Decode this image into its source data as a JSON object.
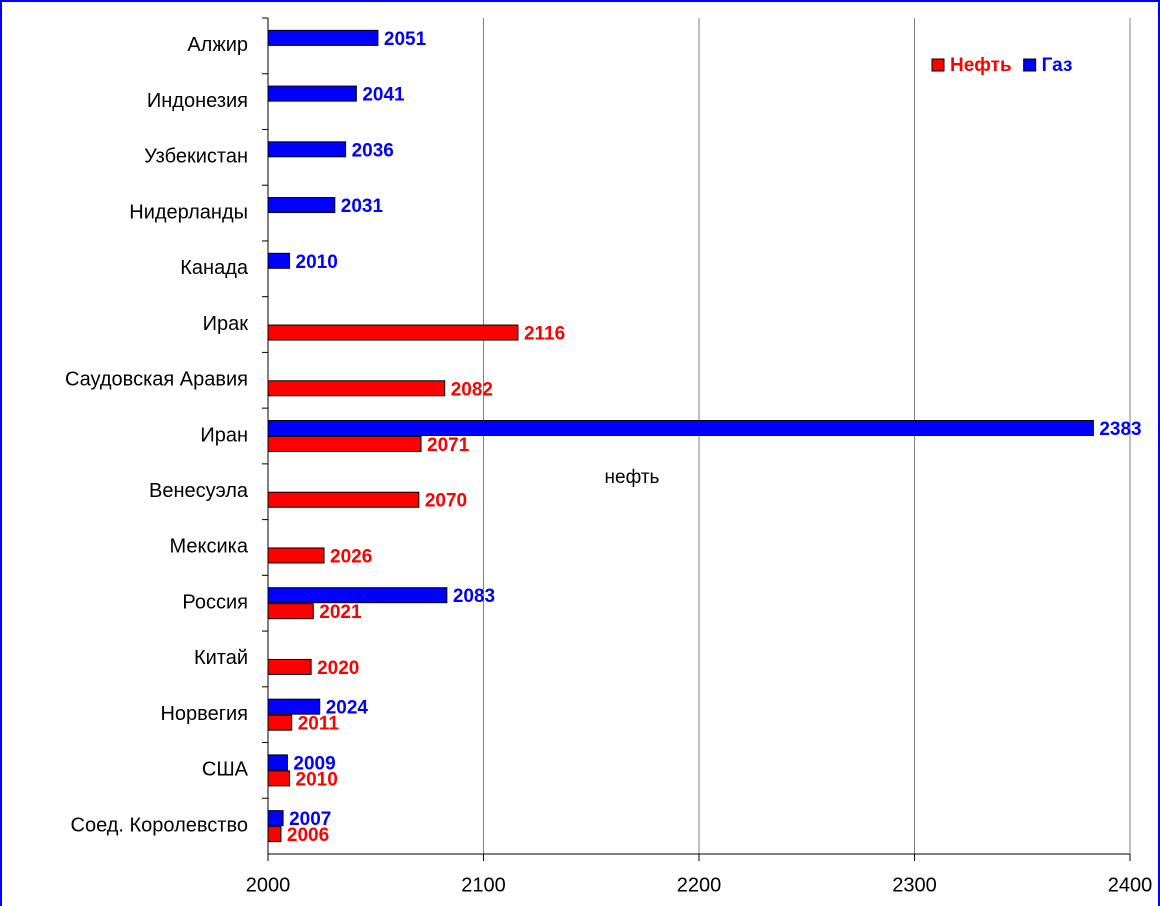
{
  "chart_data": {
    "type": "bar",
    "orientation": "horizontal",
    "categories": [
      "Алжир",
      "Индонезия",
      "Узбекистан",
      "Нидерланды",
      "Канада",
      "Ирак",
      "Саудовская Аравия",
      "Иран",
      "Венесуэла",
      "Мексика",
      "Россия",
      "Китай",
      "Норвегия",
      "США",
      "Соед. Королевство"
    ],
    "series": [
      {
        "name": "Нефть",
        "color": "#ff0000",
        "values": [
          null,
          null,
          null,
          null,
          null,
          2116,
          2082,
          2071,
          2070,
          2026,
          2021,
          2020,
          2011,
          2010,
          2006
        ]
      },
      {
        "name": "Газ",
        "color": "#0000ff",
        "values": [
          2051,
          2041,
          2036,
          2031,
          2010,
          null,
          null,
          2383,
          null,
          null,
          2083,
          null,
          2024,
          2009,
          2007
        ]
      }
    ],
    "annotations": [
      "нефть"
    ],
    "xlim": [
      2000,
      2400
    ],
    "xticks": [
      2000,
      2100,
      2200,
      2300,
      2400
    ],
    "grid": true,
    "legend": "upper right"
  }
}
